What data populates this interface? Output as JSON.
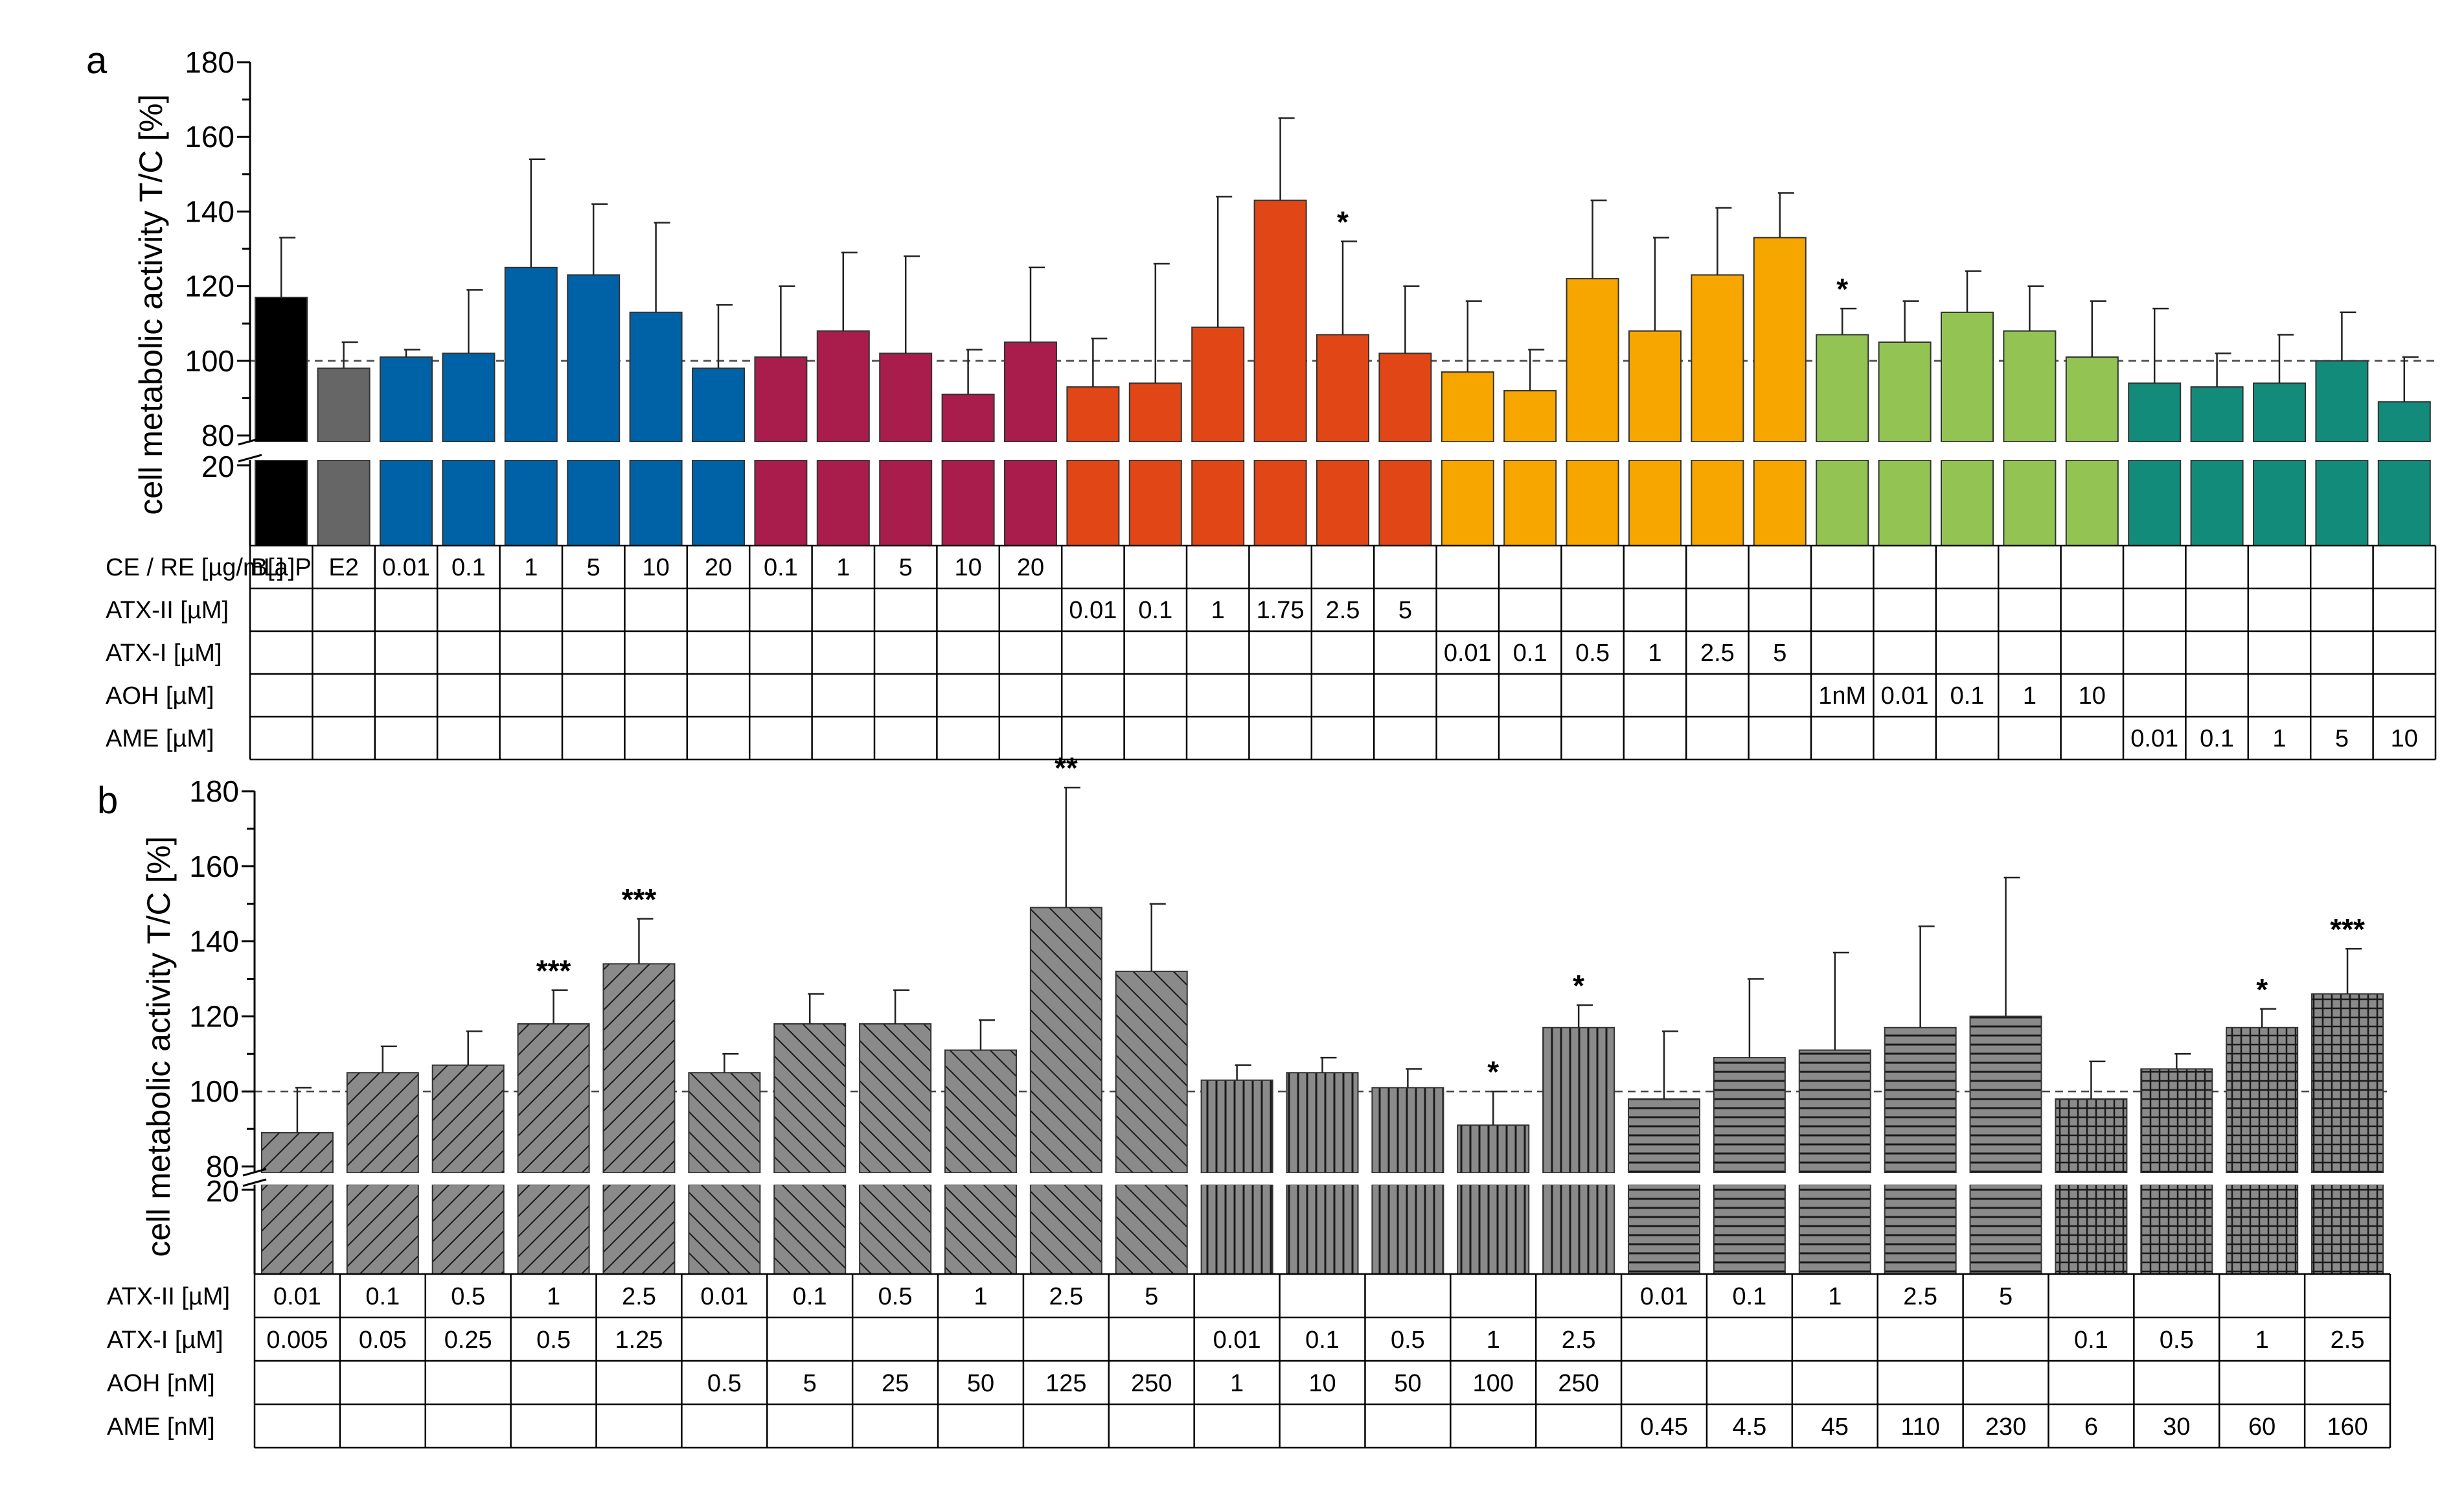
{
  "chart_data": [
    {
      "panel": "a",
      "type": "bar",
      "ylabel": "cell metabolic activity T/C [%]",
      "ylim": [
        20,
        180
      ],
      "axis_break": [
        20,
        80
      ],
      "yticks": [
        80,
        100,
        120,
        140,
        160,
        180
      ],
      "ytick_below_break": 20,
      "reference_line": 100,
      "colors": {
        "black": "#000000",
        "gray": "#666666",
        "blue": "#0062a6",
        "crimson": "#a81d4c",
        "orange": "#e04616",
        "amber": "#f7a600",
        "green": "#92c353",
        "teal": "#138b7b"
      },
      "bars": [
        {
          "value": 117,
          "err": 16,
          "color": "black",
          "sig": ""
        },
        {
          "value": 98,
          "err": 7,
          "color": "gray",
          "sig": ""
        },
        {
          "value": 101,
          "err": 2,
          "color": "blue",
          "sig": ""
        },
        {
          "value": 102,
          "err": 17,
          "color": "blue",
          "sig": ""
        },
        {
          "value": 125,
          "err": 29,
          "color": "blue",
          "sig": ""
        },
        {
          "value": 123,
          "err": 19,
          "color": "blue",
          "sig": ""
        },
        {
          "value": 113,
          "err": 24,
          "color": "blue",
          "sig": ""
        },
        {
          "value": 98,
          "err": 17,
          "color": "blue",
          "sig": ""
        },
        {
          "value": 101,
          "err": 19,
          "color": "crimson",
          "sig": ""
        },
        {
          "value": 108,
          "err": 21,
          "color": "crimson",
          "sig": ""
        },
        {
          "value": 102,
          "err": 26,
          "color": "crimson",
          "sig": ""
        },
        {
          "value": 91,
          "err": 12,
          "color": "crimson",
          "sig": ""
        },
        {
          "value": 105,
          "err": 20,
          "color": "crimson",
          "sig": ""
        },
        {
          "value": 93,
          "err": 13,
          "color": "orange",
          "sig": ""
        },
        {
          "value": 94,
          "err": 32,
          "color": "orange",
          "sig": ""
        },
        {
          "value": 109,
          "err": 35,
          "color": "orange",
          "sig": ""
        },
        {
          "value": 143,
          "err": 22,
          "color": "orange",
          "sig": ""
        },
        {
          "value": 107,
          "err": 25,
          "color": "orange",
          "sig": "*"
        },
        {
          "value": 102,
          "err": 18,
          "color": "orange",
          "sig": ""
        },
        {
          "value": 97,
          "err": 19,
          "color": "amber",
          "sig": ""
        },
        {
          "value": 92,
          "err": 11,
          "color": "amber",
          "sig": ""
        },
        {
          "value": 122,
          "err": 21,
          "color": "amber",
          "sig": ""
        },
        {
          "value": 108,
          "err": 25,
          "color": "amber",
          "sig": ""
        },
        {
          "value": 123,
          "err": 18,
          "color": "amber",
          "sig": ""
        },
        {
          "value": 133,
          "err": 12,
          "color": "amber",
          "sig": ""
        },
        {
          "value": 107,
          "err": 7,
          "color": "green",
          "sig": "*"
        },
        {
          "value": 105,
          "err": 11,
          "color": "green",
          "sig": ""
        },
        {
          "value": 113,
          "err": 11,
          "color": "green",
          "sig": ""
        },
        {
          "value": 108,
          "err": 12,
          "color": "green",
          "sig": ""
        },
        {
          "value": 101,
          "err": 15,
          "color": "green",
          "sig": ""
        },
        {
          "value": 94,
          "err": 20,
          "color": "teal",
          "sig": ""
        },
        {
          "value": 93,
          "err": 9,
          "color": "teal",
          "sig": ""
        },
        {
          "value": 94,
          "err": 13,
          "color": "teal",
          "sig": ""
        },
        {
          "value": 100,
          "err": 13,
          "color": "teal",
          "sig": ""
        },
        {
          "value": 89,
          "err": 12,
          "color": "teal",
          "sig": ""
        }
      ],
      "table": {
        "rows": [
          "CE / RE [µg/mL]",
          "ATX-II [µM]",
          "ATX-I [µM]",
          "AOH [µM]",
          "AME [µM]"
        ],
        "cells": [
          [
            "B[a]P",
            "E2",
            "0.01",
            "0.1",
            "1",
            "5",
            "10",
            "20",
            "0.1",
            "1",
            "5",
            "10",
            "20",
            "",
            "",
            "",
            "",
            "",
            "",
            "",
            "",
            "",
            "",
            "",
            "",
            "",
            "",
            "",
            "",
            "",
            "",
            "",
            "",
            "",
            ""
          ],
          [
            "",
            "",
            "",
            "",
            "",
            "",
            "",
            "",
            "",
            "",
            "",
            "",
            "",
            "0.01",
            "0.1",
            "1",
            "1.75",
            "2.5",
            "5",
            "",
            "",
            "",
            "",
            "",
            "",
            "",
            "",
            "",
            "",
            "",
            "",
            "",
            "",
            "",
            ""
          ],
          [
            "",
            "",
            "",
            "",
            "",
            "",
            "",
            "",
            "",
            "",
            "",
            "",
            "",
            "",
            "",
            "",
            "",
            "",
            "",
            "0.01",
            "0.1",
            "0.5",
            "1",
            "2.5",
            "5",
            "",
            "",
            "",
            "",
            "",
            "",
            "",
            "",
            "",
            ""
          ],
          [
            "",
            "",
            "",
            "",
            "",
            "",
            "",
            "",
            "",
            "",
            "",
            "",
            "",
            "",
            "",
            "",
            "",
            "",
            "",
            "",
            "",
            "",
            "",
            "",
            "",
            "1nM",
            "0.01",
            "0.1",
            "1",
            "10",
            "",
            "",
            "",
            "",
            ""
          ],
          [
            "",
            "",
            "",
            "",
            "",
            "",
            "",
            "",
            "",
            "",
            "",
            "",
            "",
            "",
            "",
            "",
            "",
            "",
            "",
            "",
            "",
            "",
            "",
            "",
            "",
            "",
            "",
            "",
            "",
            "",
            "0.01",
            "0.1",
            "1",
            "5",
            "10"
          ]
        ]
      }
    },
    {
      "panel": "b",
      "type": "bar",
      "ylabel": "cell metabolic activity T/C [%]",
      "ylim": [
        20,
        180
      ],
      "axis_break": [
        20,
        80
      ],
      "yticks": [
        80,
        100,
        120,
        140,
        160,
        180
      ],
      "ytick_below_break": 20,
      "reference_line": 100,
      "colors": {
        "bar": "#8a8a8a",
        "hatch": "#1a1a1a"
      },
      "bars": [
        {
          "value": 89,
          "err": 12,
          "pattern": "diag-right",
          "sig": ""
        },
        {
          "value": 105,
          "err": 7,
          "pattern": "diag-right",
          "sig": ""
        },
        {
          "value": 107,
          "err": 9,
          "pattern": "diag-right",
          "sig": ""
        },
        {
          "value": 118,
          "err": 9,
          "pattern": "diag-right",
          "sig": "***"
        },
        {
          "value": 134,
          "err": 12,
          "pattern": "diag-right",
          "sig": "***"
        },
        {
          "value": 105,
          "err": 5,
          "pattern": "diag-left",
          "sig": ""
        },
        {
          "value": 118,
          "err": 8,
          "pattern": "diag-left",
          "sig": ""
        },
        {
          "value": 118,
          "err": 9,
          "pattern": "diag-left",
          "sig": ""
        },
        {
          "value": 111,
          "err": 8,
          "pattern": "diag-left",
          "sig": ""
        },
        {
          "value": 149,
          "err": 32,
          "pattern": "diag-left",
          "sig": "**"
        },
        {
          "value": 132,
          "err": 18,
          "pattern": "diag-left",
          "sig": ""
        },
        {
          "value": 103,
          "err": 4,
          "pattern": "vertical",
          "sig": ""
        },
        {
          "value": 105,
          "err": 4,
          "pattern": "vertical",
          "sig": ""
        },
        {
          "value": 101,
          "err": 5,
          "pattern": "vertical",
          "sig": ""
        },
        {
          "value": 91,
          "err": 9,
          "pattern": "vertical",
          "sig": "*"
        },
        {
          "value": 117,
          "err": 6,
          "pattern": "vertical",
          "sig": "*"
        },
        {
          "value": 98,
          "err": 18,
          "pattern": "horizontal",
          "sig": ""
        },
        {
          "value": 109,
          "err": 21,
          "pattern": "horizontal",
          "sig": ""
        },
        {
          "value": 111,
          "err": 26,
          "pattern": "horizontal",
          "sig": ""
        },
        {
          "value": 117,
          "err": 27,
          "pattern": "horizontal",
          "sig": ""
        },
        {
          "value": 120,
          "err": 37,
          "pattern": "horizontal",
          "sig": ""
        },
        {
          "value": 98,
          "err": 10,
          "pattern": "grid",
          "sig": ""
        },
        {
          "value": 106,
          "err": 4,
          "pattern": "grid",
          "sig": ""
        },
        {
          "value": 117,
          "err": 5,
          "pattern": "grid",
          "sig": "*"
        },
        {
          "value": 126,
          "err": 12,
          "pattern": "grid",
          "sig": "***"
        }
      ],
      "table": {
        "rows": [
          "ATX-II [µM]",
          "ATX-I [µM]",
          "AOH [nM]",
          "AME [nM]"
        ],
        "cells": [
          [
            "0.01",
            "0.1",
            "0.5",
            "1",
            "2.5",
            "0.01",
            "0.1",
            "0.5",
            "1",
            "2.5",
            "5",
            "",
            "",
            "",
            "",
            "",
            "0.01",
            "0.1",
            "1",
            "2.5",
            "5",
            "",
            "",
            "",
            ""
          ],
          [
            "0.005",
            "0.05",
            "0.25",
            "0.5",
            "1.25",
            "",
            "",
            "",
            "",
            "",
            "",
            "0.01",
            "0.1",
            "0.5",
            "1",
            "2.5",
            "",
            "",
            "",
            "",
            "",
            "0.1",
            "0.5",
            "1",
            "2.5"
          ],
          [
            "",
            "",
            "",
            "",
            "",
            "0.5",
            "5",
            "25",
            "50",
            "125",
            "250",
            "1",
            "10",
            "50",
            "100",
            "250",
            "",
            "",
            "",
            "",
            "",
            "",
            "",
            "",
            ""
          ],
          [
            "",
            "",
            "",
            "",
            "",
            "",
            "",
            "",
            "",
            "",
            "",
            "",
            "",
            "",
            "",
            "",
            "0.45",
            "4.5",
            "45",
            "110",
            "230",
            "6",
            "30",
            "60",
            "160"
          ]
        ]
      }
    }
  ]
}
